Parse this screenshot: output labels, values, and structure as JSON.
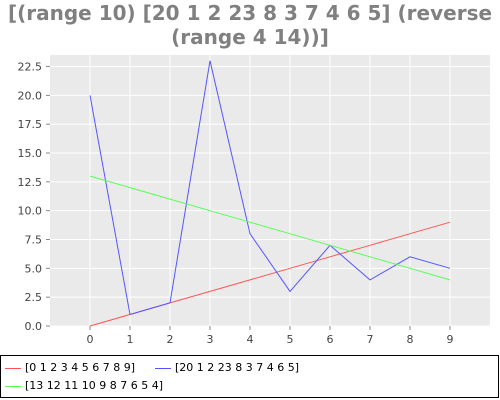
{
  "chart_data": {
    "type": "line",
    "title": "[(range 10) [20 1 2 23 8 3 7 4 6 5] (reverse (range 4 14))]",
    "xlabel": "",
    "ylabel": "",
    "x": [
      0,
      1,
      2,
      3,
      4,
      5,
      6,
      7,
      8,
      9
    ],
    "xlim": [
      -1,
      10
    ],
    "ylim": [
      0,
      23.5
    ],
    "x_ticks": [
      0,
      1,
      2,
      3,
      4,
      5,
      6,
      7,
      8,
      9
    ],
    "y_ticks": [
      0.0,
      2.5,
      5.0,
      7.5,
      10.0,
      12.5,
      15.0,
      17.5,
      20.0,
      22.5
    ],
    "y_tick_labels": [
      "0.0",
      "2.5",
      "5.0",
      "7.5",
      "10.0",
      "12.5",
      "15.0",
      "17.5",
      "20.0",
      "22.5"
    ],
    "grid": true,
    "legend_position": "bottom",
    "background_color": "#eaeaea",
    "series": [
      {
        "name": "[0 1 2 3 4 5 6 7 8 9]",
        "color": "#ff5555",
        "values": [
          0,
          1,
          2,
          3,
          4,
          5,
          6,
          7,
          8,
          9
        ]
      },
      {
        "name": "[20 1 2 23 8 3 7 4 6 5]",
        "color": "#5555ff",
        "values": [
          20,
          1,
          2,
          23,
          8,
          3,
          7,
          4,
          6,
          5
        ]
      },
      {
        "name": "[13 12 11 10 9 8 7 6 5 4]",
        "color": "#55ff55",
        "values": [
          13,
          12,
          11,
          10,
          9,
          8,
          7,
          6,
          5,
          4
        ]
      }
    ]
  }
}
